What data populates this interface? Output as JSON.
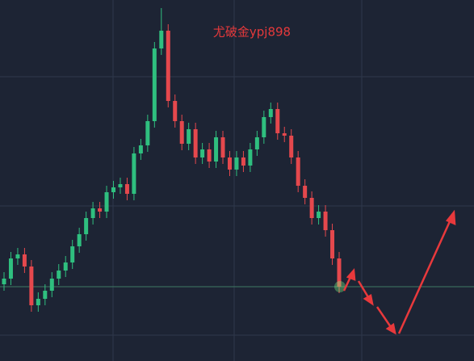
{
  "chart_data": {
    "type": "candlestick",
    "title": "尤破金ypj898",
    "up_color": "#2fbf7f",
    "down_color": "#e5484d",
    "ylim": [
      0,
      447
    ],
    "open": [
      95,
      102,
      127,
      132,
      117,
      69,
      77,
      87,
      102,
      112,
      122,
      142,
      157,
      177,
      189,
      185,
      209,
      215,
      219,
      207,
      257,
      267,
      297,
      387,
      409,
      322,
      297,
      269,
      287,
      252,
      262,
      247,
      277,
      252,
      237,
      252,
      242,
      262,
      277,
      302,
      312,
      282,
      279,
      252,
      217,
      202,
      177,
      185,
      162,
      127
    ],
    "high": [
      110,
      135,
      140,
      140,
      125,
      85,
      95,
      110,
      120,
      130,
      150,
      165,
      185,
      197,
      197,
      217,
      223,
      227,
      227,
      265,
      275,
      305,
      395,
      437,
      417,
      330,
      305,
      295,
      295,
      270,
      270,
      285,
      285,
      260,
      260,
      260,
      270,
      285,
      310,
      320,
      320,
      290,
      287,
      260,
      225,
      210,
      193,
      193,
      170,
      135
    ],
    "low": [
      87,
      94,
      119,
      109,
      61,
      61,
      69,
      79,
      94,
      104,
      114,
      134,
      149,
      169,
      177,
      177,
      201,
      207,
      199,
      199,
      249,
      259,
      289,
      379,
      314,
      289,
      261,
      261,
      244,
      244,
      239,
      239,
      244,
      229,
      229,
      234,
      234,
      254,
      269,
      294,
      274,
      271,
      244,
      209,
      194,
      169,
      169,
      154,
      119,
      84
    ],
    "close": [
      102,
      127,
      132,
      117,
      69,
      77,
      87,
      102,
      112,
      122,
      142,
      157,
      177,
      189,
      185,
      209,
      215,
      219,
      207,
      257,
      267,
      297,
      387,
      409,
      322,
      297,
      269,
      287,
      252,
      262,
      247,
      277,
      252,
      237,
      252,
      242,
      262,
      277,
      302,
      312,
      282,
      279,
      252,
      217,
      202,
      177,
      185,
      162,
      127,
      92
    ]
  }
}
